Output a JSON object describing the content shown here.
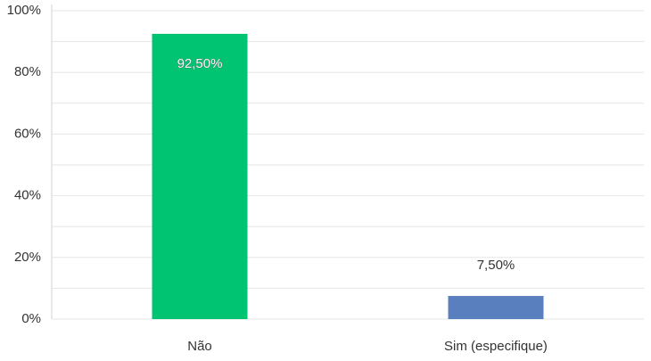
{
  "chart_data": {
    "type": "bar",
    "categories": [
      "Não",
      "Sim (especifique)"
    ],
    "series": [
      {
        "color": "#00c471",
        "values": [
          92.5,
          null
        ],
        "value_labels": [
          "92,50%",
          null
        ]
      },
      {
        "color": "#5a7fbf",
        "values": [
          null,
          7.5
        ],
        "value_labels": [
          null,
          "7,50%"
        ]
      }
    ],
    "ylim": [
      0,
      100
    ],
    "yticks": [
      {
        "value": 0,
        "label": "0%"
      },
      {
        "value": 20,
        "label": "20%"
      },
      {
        "value": 40,
        "label": "40%"
      },
      {
        "value": 60,
        "label": "60%"
      },
      {
        "value": 80,
        "label": "80%"
      },
      {
        "value": 100,
        "label": "100%"
      }
    ],
    "minor_yticks": [
      10,
      30,
      50,
      70,
      90
    ],
    "grid": true
  }
}
